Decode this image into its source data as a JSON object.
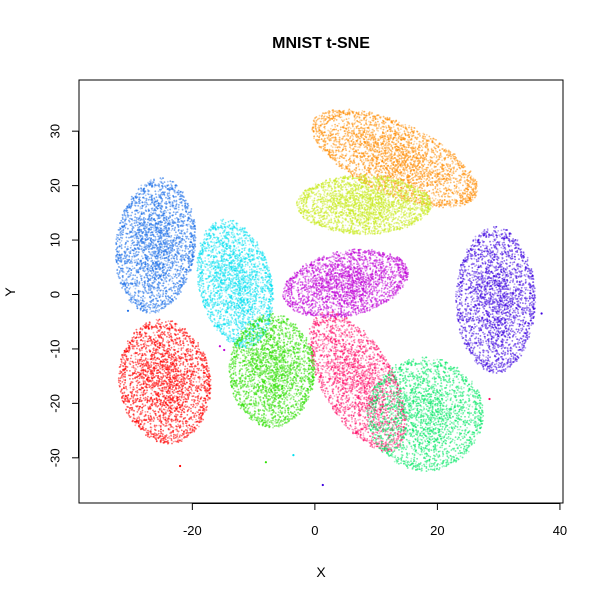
{
  "chart_data": {
    "type": "scatter",
    "title": "MNIST t-SNE",
    "xlabel": "X",
    "ylabel": "Y",
    "xlim": [
      -38.5,
      40.5
    ],
    "ylim": [
      -38.3,
      39.4
    ],
    "xticks": [
      -20,
      0,
      20,
      40
    ],
    "yticks": [
      -30,
      -20,
      -10,
      0,
      10,
      20,
      30
    ],
    "grid": false,
    "legend": "none",
    "point_size": 0.9,
    "point_alpha": 0.35,
    "clusters": [
      {
        "color": "#ff8c00",
        "center": [
          13,
          25
        ],
        "spread": [
          15,
          6.5
        ],
        "rotation": -28,
        "points": 4500
      },
      {
        "color": "#1e6fe8",
        "center": [
          -26,
          9
        ],
        "spread": [
          6.5,
          12.5
        ],
        "rotation": -5,
        "points": 4000
      },
      {
        "color": "#c8ec1c",
        "center": [
          8,
          16.5
        ],
        "spread": [
          11,
          5.5
        ],
        "rotation": 0,
        "points": 3800
      },
      {
        "color": "#00e0f0",
        "center": [
          -13,
          2
        ],
        "spread": [
          6,
          12
        ],
        "rotation": 10,
        "points": 3600
      },
      {
        "color": "#c000d8",
        "center": [
          5,
          2
        ],
        "spread": [
          10.5,
          6
        ],
        "rotation": 15,
        "points": 3800
      },
      {
        "color": "#ff0060",
        "center": [
          7,
          -16
        ],
        "spread": [
          6,
          14
        ],
        "rotation": 25,
        "points": 3300
      },
      {
        "color": "#3c00e0",
        "center": [
          29.5,
          -1
        ],
        "spread": [
          6.5,
          13.5
        ],
        "rotation": 0,
        "points": 3800
      },
      {
        "color": "#ff0000",
        "center": [
          -24.5,
          -16
        ],
        "spread": [
          7.5,
          11.5
        ],
        "rotation": 5,
        "points": 4200
      },
      {
        "color": "#2ee000",
        "center": [
          -7,
          -14
        ],
        "spread": [
          7,
          10.5
        ],
        "rotation": 0,
        "points": 3800
      },
      {
        "color": "#00e864",
        "center": [
          18,
          -22
        ],
        "spread": [
          9.5,
          10.5
        ],
        "rotation": 0,
        "points": 3800
      }
    ],
    "stray_points": [
      {
        "x": -15.5,
        "y": -9.5,
        "color": "#c000d8"
      },
      {
        "x": -14.8,
        "y": -10.2,
        "color": "#c000d8"
      },
      {
        "x": -3.5,
        "y": -29.5,
        "color": "#00e0f0"
      },
      {
        "x": -8,
        "y": -30.8,
        "color": "#2ee000"
      },
      {
        "x": 1.3,
        "y": -35,
        "color": "#3c00e0"
      },
      {
        "x": 28.5,
        "y": -19.2,
        "color": "#ff0060"
      },
      {
        "x": -22,
        "y": -31.5,
        "color": "#ff0000"
      },
      {
        "x": 11,
        "y": 24.5,
        "color": "#ff8c00"
      },
      {
        "x": -30.5,
        "y": -3,
        "color": "#1e6fe8"
      },
      {
        "x": 37,
        "y": -3.5,
        "color": "#3c00e0"
      }
    ]
  }
}
